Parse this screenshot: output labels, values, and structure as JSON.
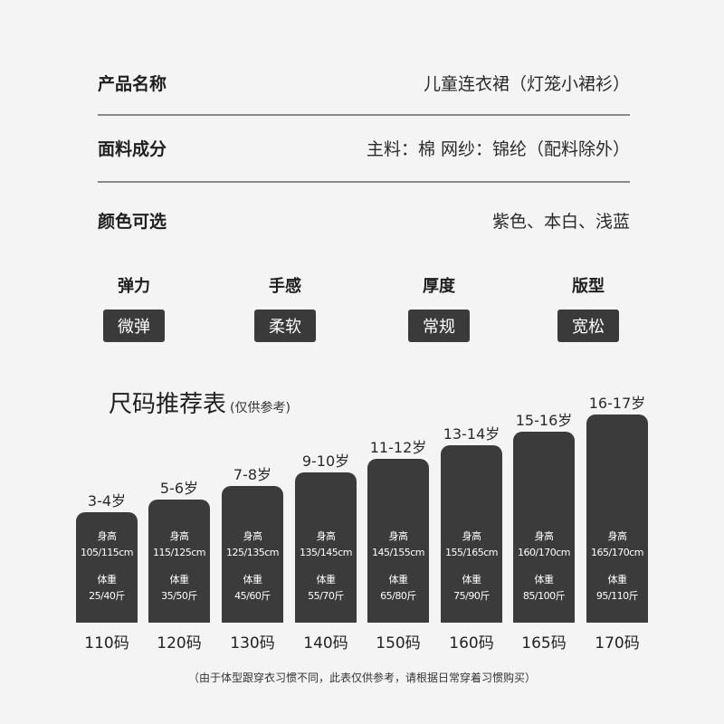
{
  "info": [
    {
      "label": "产品名称",
      "value": "儿童连衣裙（灯笼小裙衫）"
    },
    {
      "label": "面料成分",
      "value": "主料：棉  网纱：锦纶（配料除外）"
    },
    {
      "label": "颜色可选",
      "value": "紫色、本白、浅蓝"
    }
  ],
  "attributes": [
    {
      "label": "弹力",
      "value": "微弹"
    },
    {
      "label": "手感",
      "value": "柔软"
    },
    {
      "label": "厚度",
      "value": "常规"
    },
    {
      "label": "版型",
      "value": "宽松"
    }
  ],
  "size_chart": {
    "title": "尺码推荐表",
    "subtitle": "(仅供参考)",
    "height_label": "身高",
    "weight_label": "体重",
    "sizes": [
      {
        "age": "3-4岁",
        "height": "105/115cm",
        "weight": "25/40斤",
        "size": "110码"
      },
      {
        "age": "5-6岁",
        "height": "115/125cm",
        "weight": "35/50斤",
        "size": "120码"
      },
      {
        "age": "7-8岁",
        "height": "125/135cm",
        "weight": "45/60斤",
        "size": "130码"
      },
      {
        "age": "9-10岁",
        "height": "135/145cm",
        "weight": "55/70斤",
        "size": "140码"
      },
      {
        "age": "11-12岁",
        "height": "145/155cm",
        "weight": "65/80斤",
        "size": "150码"
      },
      {
        "age": "13-14岁",
        "height": "155/165cm",
        "weight": "75/90斤",
        "size": "160码"
      },
      {
        "age": "15-16岁",
        "height": "160/170cm",
        "weight": "85/100斤",
        "size": "165码"
      },
      {
        "age": "16-17岁",
        "height": "165/170cm",
        "weight": "95/110斤",
        "size": "170码"
      }
    ],
    "note": "（由于体型跟穿衣习惯不同，此表仅供参考，请根据日常穿着习惯购买）"
  }
}
